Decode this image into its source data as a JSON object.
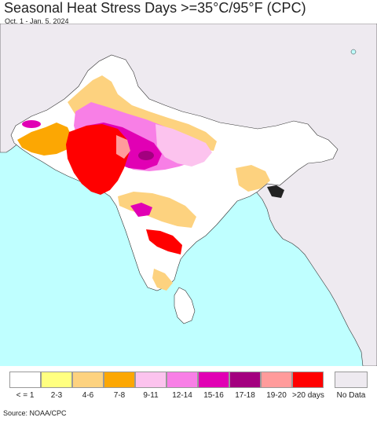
{
  "title": "Seasonal Heat Stress Days >=35°C/95°F (CPC)",
  "subtitle": "Oct. 1 - Jan. 5, 2024",
  "source": "Source: NOAA/CPC",
  "colors": {
    "ocean": "#bfffff",
    "land": "#ffffff",
    "no_data_land": "#eeeaf0",
    "border": "#333333"
  },
  "legend": {
    "items": [
      {
        "label": "< = 1",
        "color": "#ffffff"
      },
      {
        "label": "2-3",
        "color": "#ffff80"
      },
      {
        "label": "4-6",
        "color": "#fdd27f"
      },
      {
        "label": "7-8",
        "color": "#fca703"
      },
      {
        "label": "9-11",
        "color": "#fcc3ee"
      },
      {
        "label": "12-14",
        "color": "#f87fe6"
      },
      {
        "label": "15-16",
        "color": "#e100b4"
      },
      {
        "label": "17-18",
        "color": "#a3007f"
      },
      {
        "label": "19-20",
        "color": "#ff9b9b"
      },
      {
        "label": ">20 days",
        "color": "#ff0000"
      }
    ],
    "no_data": {
      "label": "No Data",
      "color": "#eeeaf0"
    }
  }
}
